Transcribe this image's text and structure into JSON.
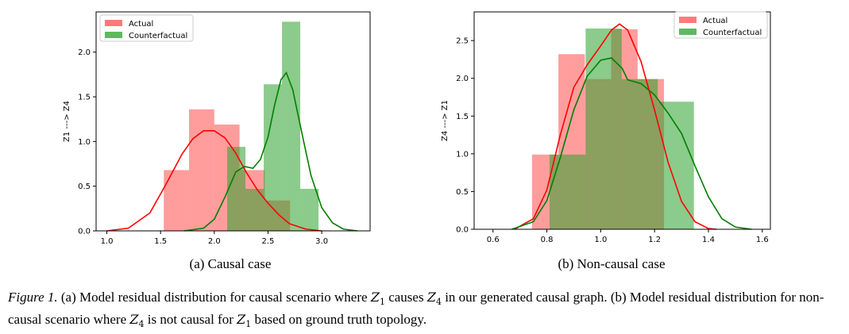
{
  "chart_data": [
    {
      "type": "histogram",
      "ylabel": "Z1 ---> Z4",
      "xlim": [
        0.9,
        3.45
      ],
      "ylim": [
        0,
        2.45
      ],
      "xticks": [
        "1.0",
        "1.5",
        "2.0",
        "2.5",
        "3.0"
      ],
      "yticks": [
        "0.0",
        "0.5",
        "1.0",
        "1.5",
        "2.0"
      ],
      "legend": {
        "position": "top-left",
        "entries": [
          "Actual",
          "Counterfactual"
        ]
      },
      "series": [
        {
          "name": "Actual",
          "color": "#ff0000",
          "bins": [
            {
              "x0": 1.53,
              "x1": 1.765,
              "h": 0.68
            },
            {
              "x0": 1.765,
              "x1": 2.0,
              "h": 1.36
            },
            {
              "x0": 2.0,
              "x1": 2.235,
              "h": 1.19
            },
            {
              "x0": 2.235,
              "x1": 2.47,
              "h": 0.68
            },
            {
              "x0": 2.47,
              "x1": 2.705,
              "h": 0.34
            }
          ],
          "kde": [
            [
              1.0,
              0.0
            ],
            [
              1.2,
              0.03
            ],
            [
              1.4,
              0.2
            ],
            [
              1.55,
              0.52
            ],
            [
              1.7,
              0.86
            ],
            [
              1.8,
              1.03
            ],
            [
              1.9,
              1.12
            ],
            [
              2.0,
              1.12
            ],
            [
              2.1,
              1.04
            ],
            [
              2.2,
              0.87
            ],
            [
              2.3,
              0.65
            ],
            [
              2.4,
              0.46
            ],
            [
              2.5,
              0.31
            ],
            [
              2.6,
              0.18
            ],
            [
              2.7,
              0.08
            ],
            [
              2.85,
              0.02
            ],
            [
              3.0,
              0.0
            ]
          ]
        },
        {
          "name": "Counterfactual",
          "color": "#008000",
          "bins": [
            {
              "x0": 2.12,
              "x1": 2.29,
              "h": 0.94
            },
            {
              "x0": 2.29,
              "x1": 2.46,
              "h": 0.47
            },
            {
              "x0": 2.46,
              "x1": 2.63,
              "h": 1.64
            },
            {
              "x0": 2.63,
              "x1": 2.8,
              "h": 2.34
            },
            {
              "x0": 2.8,
              "x1": 2.97,
              "h": 0.47
            }
          ],
          "kde": [
            [
              1.72,
              0.0
            ],
            [
              1.9,
              0.03
            ],
            [
              2.0,
              0.13
            ],
            [
              2.1,
              0.38
            ],
            [
              2.2,
              0.66
            ],
            [
              2.28,
              0.72
            ],
            [
              2.36,
              0.7
            ],
            [
              2.43,
              0.8
            ],
            [
              2.5,
              1.05
            ],
            [
              2.56,
              1.4
            ],
            [
              2.62,
              1.69
            ],
            [
              2.67,
              1.77
            ],
            [
              2.73,
              1.58
            ],
            [
              2.8,
              1.18
            ],
            [
              2.9,
              0.62
            ],
            [
              3.0,
              0.26
            ],
            [
              3.1,
              0.09
            ],
            [
              3.2,
              0.02
            ],
            [
              3.33,
              0.0
            ]
          ]
        }
      ]
    },
    {
      "type": "histogram",
      "ylabel": "Z4 ---> Z1",
      "xlim": [
        0.53,
        1.63
      ],
      "ylim": [
        0,
        2.88
      ],
      "xticks": [
        "0.6",
        "0.8",
        "1.0",
        "1.2",
        "1.4",
        "1.6"
      ],
      "yticks": [
        "0.0",
        "0.5",
        "1.0",
        "1.5",
        "2.0",
        "2.5"
      ],
      "legend": {
        "position": "top-right",
        "entries": [
          "Actual",
          "Counterfactual"
        ]
      },
      "series": [
        {
          "name": "Actual",
          "color": "#ff0000",
          "bins": [
            {
              "x0": 0.745,
              "x1": 0.843,
              "h": 0.99
            },
            {
              "x0": 0.843,
              "x1": 0.941,
              "h": 2.32
            },
            {
              "x0": 0.941,
              "x1": 1.039,
              "h": 1.99
            },
            {
              "x0": 1.039,
              "x1": 1.137,
              "h": 2.65
            },
            {
              "x0": 1.137,
              "x1": 1.235,
              "h": 1.99
            }
          ],
          "kde": [
            [
              0.68,
              0.0
            ],
            [
              0.75,
              0.14
            ],
            [
              0.8,
              0.52
            ],
            [
              0.85,
              1.25
            ],
            [
              0.9,
              1.88
            ],
            [
              0.95,
              2.18
            ],
            [
              1.0,
              2.43
            ],
            [
              1.04,
              2.64
            ],
            [
              1.07,
              2.72
            ],
            [
              1.1,
              2.64
            ],
            [
              1.15,
              2.22
            ],
            [
              1.2,
              1.58
            ],
            [
              1.25,
              0.89
            ],
            [
              1.3,
              0.37
            ],
            [
              1.35,
              0.1
            ],
            [
              1.4,
              0.01
            ],
            [
              1.43,
              0.0
            ]
          ]
        },
        {
          "name": "Counterfactual",
          "color": "#008000",
          "bins": [
            {
              "x0": 0.81,
              "x1": 0.944,
              "h": 0.99
            },
            {
              "x0": 0.944,
              "x1": 1.078,
              "h": 2.66
            },
            {
              "x0": 1.078,
              "x1": 1.212,
              "h": 1.99
            },
            {
              "x0": 1.212,
              "x1": 1.346,
              "h": 1.69
            }
          ],
          "kde": [
            [
              0.67,
              0.0
            ],
            [
              0.75,
              0.1
            ],
            [
              0.8,
              0.38
            ],
            [
              0.85,
              0.95
            ],
            [
              0.9,
              1.58
            ],
            [
              0.95,
              2.03
            ],
            [
              1.0,
              2.24
            ],
            [
              1.04,
              2.27
            ],
            [
              1.08,
              2.13
            ],
            [
              1.1,
              1.98
            ],
            [
              1.15,
              1.93
            ],
            [
              1.2,
              1.78
            ],
            [
              1.25,
              1.54
            ],
            [
              1.3,
              1.27
            ],
            [
              1.35,
              0.84
            ],
            [
              1.4,
              0.43
            ],
            [
              1.45,
              0.14
            ],
            [
              1.5,
              0.03
            ],
            [
              1.56,
              0.0
            ]
          ]
        }
      ]
    }
  ],
  "subcaptions": [
    "(a) Causal case",
    "(b) Non-causal case"
  ],
  "caption": {
    "label": "Figure 1.",
    "t1": "(a) Model residual distribution for causal scenario where",
    "m1": "Z",
    "s1": "1",
    "t2": "causes",
    "m2": "Z",
    "s2": "4",
    "t3": "in our generated causal graph. (b) Model residual distribution for non-causal scenario where",
    "m3": "Z",
    "s3": "4",
    "t4": "is not causal for",
    "m4": "Z",
    "s4": "1",
    "t5": "based on ground truth topology."
  }
}
